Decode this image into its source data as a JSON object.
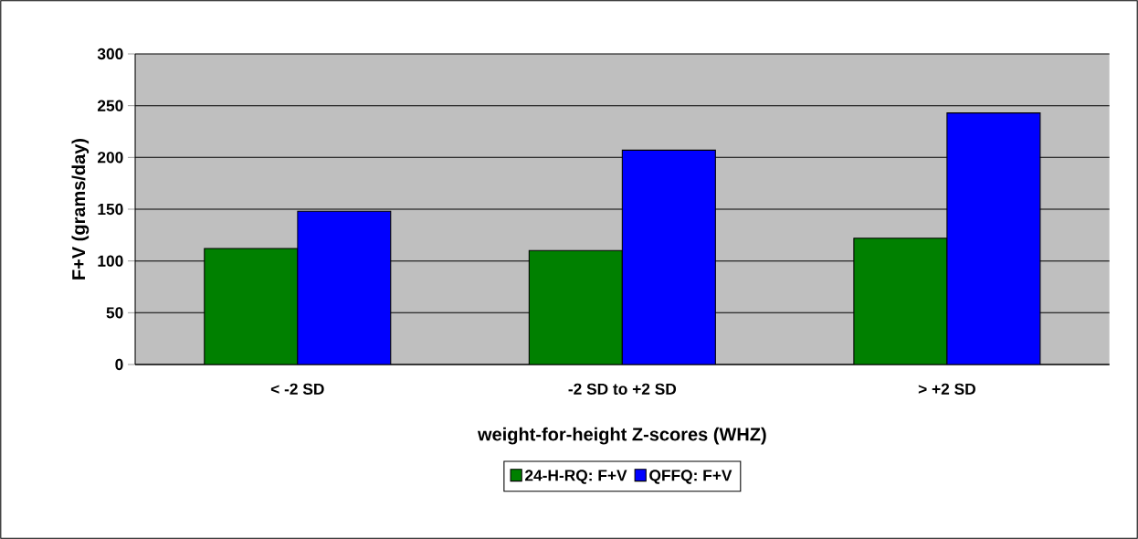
{
  "chart_data": {
    "type": "bar",
    "categories": [
      "< -2 SD",
      "-2 SD to +2 SD",
      "> +2 SD"
    ],
    "xlabel": "weight-for-height Z-scores (WHZ)",
    "ylabel": "F+V (grams/day)",
    "series": [
      {
        "name": "24-H-RQ: F+V",
        "color": "#008000",
        "values": [
          112,
          110,
          122
        ]
      },
      {
        "name": "QFFQ: F+V",
        "color": "#0000ff",
        "values": [
          148,
          207,
          243
        ]
      }
    ],
    "ylim": [
      0,
      300
    ],
    "yticks": [
      0,
      50,
      100,
      150,
      200,
      250,
      300
    ],
    "grid": "y",
    "legend": "bottom"
  }
}
